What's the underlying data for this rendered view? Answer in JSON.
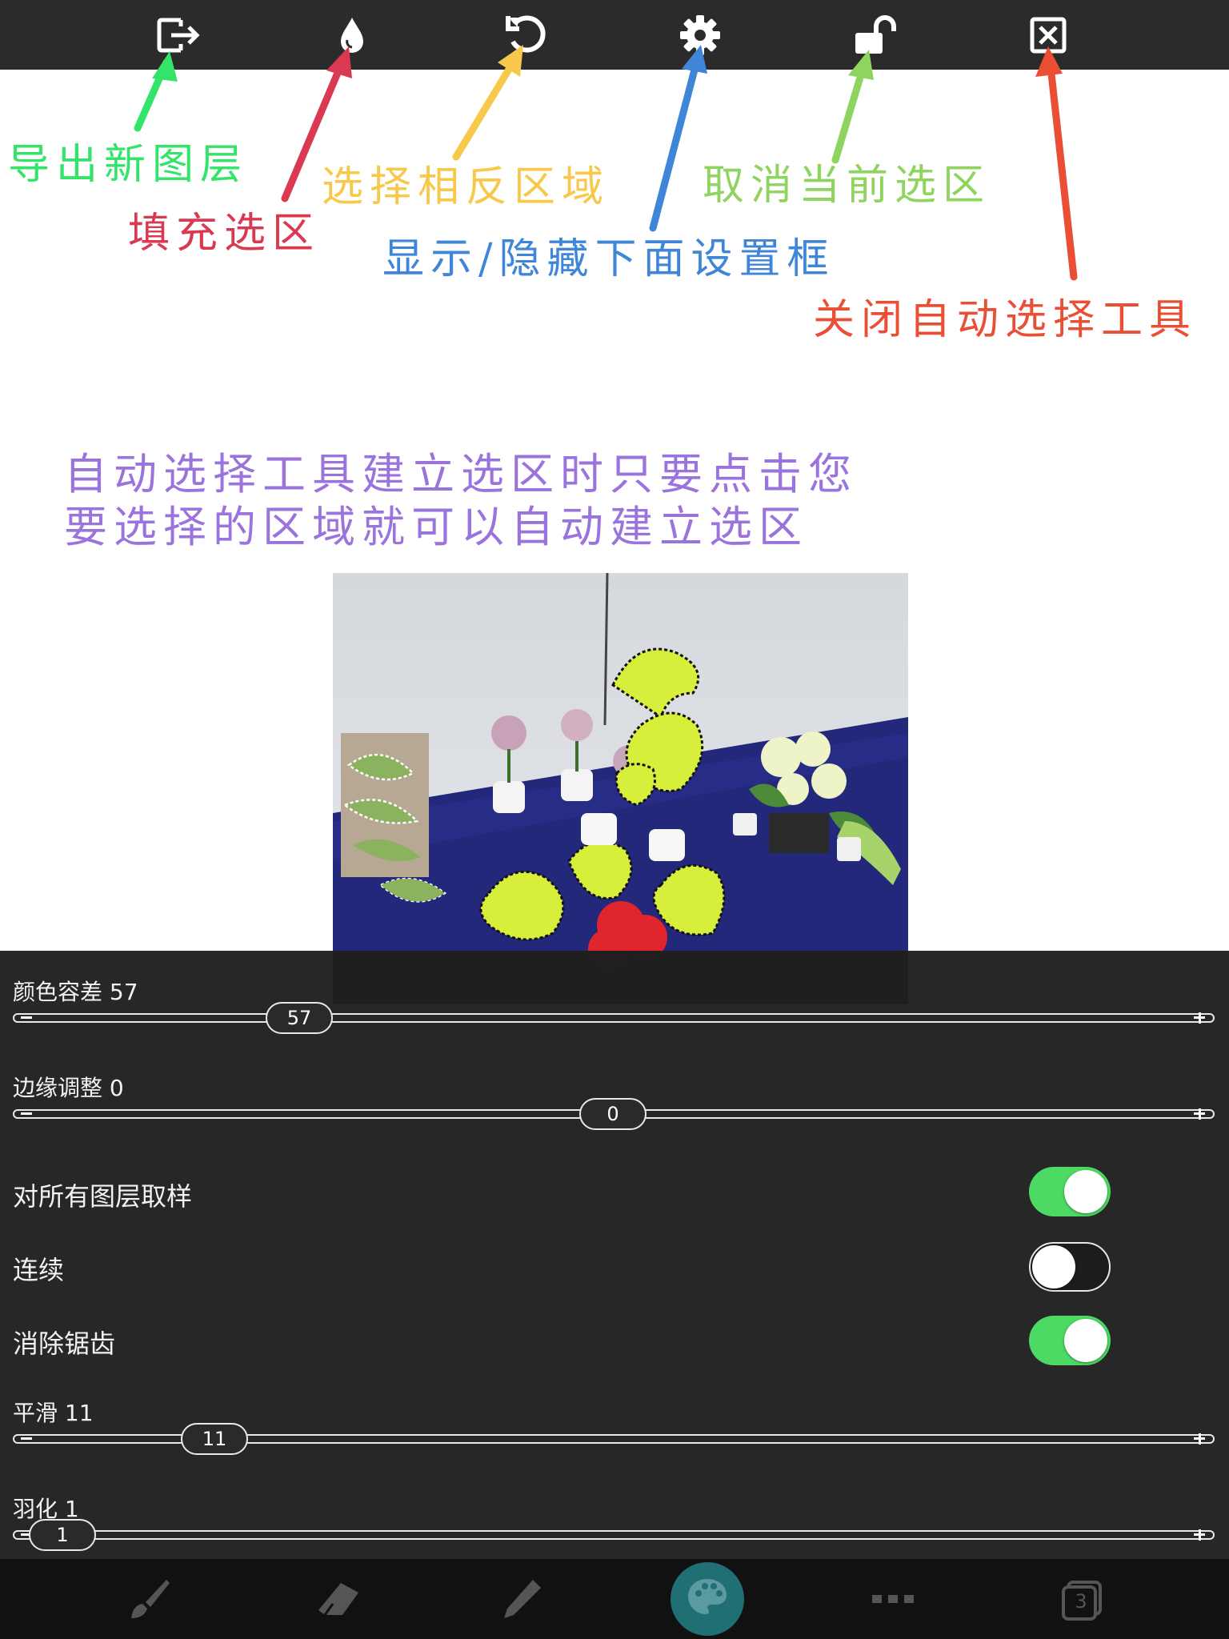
{
  "toolbar": {
    "buttons": [
      {
        "name": "export-new-layer",
        "icon": "export-icon"
      },
      {
        "name": "fill-selection",
        "icon": "drop-icon"
      },
      {
        "name": "invert-selection",
        "icon": "rotate-icon"
      },
      {
        "name": "toggle-settings",
        "icon": "gear-icon"
      },
      {
        "name": "deselect",
        "icon": "unlock-icon"
      },
      {
        "name": "close-auto-select",
        "icon": "close-box-icon"
      }
    ]
  },
  "annotations": {
    "export_new_layer": "导出新图层",
    "fill_selection": "填充选区",
    "invert_selection": "选择相反区域",
    "toggle_settings": "显示/隐藏下面设置框",
    "deselect": "取消当前选区",
    "close_tool": "关闭自动选择工具",
    "description_line1": "自动选择工具建立选区时只要点击您",
    "description_line2": "要选择的区域就可以自动建立选区",
    "colors": {
      "export_new_layer": "#33e36a",
      "fill_selection": "#d93a52",
      "invert_selection": "#f7c84a",
      "toggle_settings": "#3f86d9",
      "deselect": "#8fd45e",
      "close_tool": "#ea4f35",
      "description": "#9b73dd"
    }
  },
  "settings": {
    "color_tolerance": {
      "label": "颜色容差 57",
      "value": 57,
      "thumb_text": "57",
      "position": 0.24
    },
    "edge_adjust": {
      "label": "边缘调整 0",
      "value": 0,
      "thumb_text": "0",
      "position": 0.5
    },
    "sample_all_layers": {
      "label": "对所有图层取样",
      "on": true
    },
    "contiguous": {
      "label": "连续",
      "on": false
    },
    "antialias": {
      "label": "消除锯齿",
      "on": true
    },
    "smooth": {
      "label": "平滑 11",
      "value": 11,
      "thumb_text": "11",
      "position": 0.11
    },
    "feather": {
      "label": "羽化 1",
      "value": 1,
      "thumb_text": "1",
      "position": 0.01
    }
  },
  "bottombar": {
    "items": [
      "brush-icon",
      "eraser-icon",
      "pencil-icon",
      "palette-icon",
      "more-icon",
      "layers-icon"
    ],
    "layers_count": "3"
  },
  "theme": {
    "toolbar_bg": "#2b2b2b",
    "panel_bg": "#202020",
    "toggle_on": "#4cd964",
    "palette_button": "#1f6f73"
  }
}
